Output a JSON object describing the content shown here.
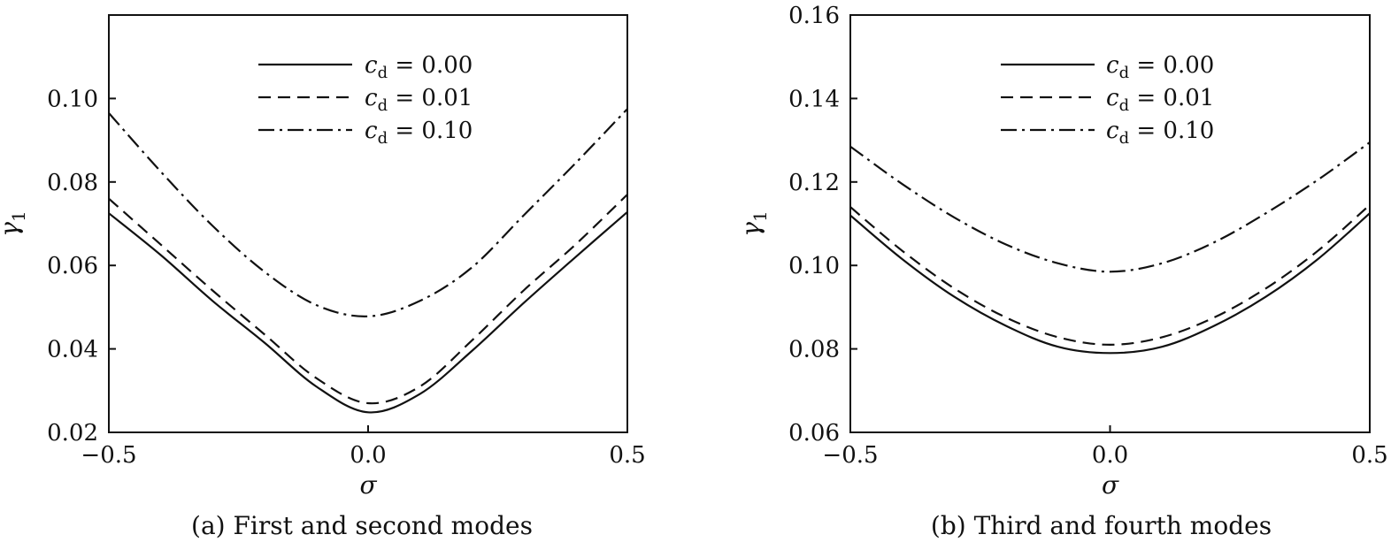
{
  "chart_data": [
    {
      "type": "line",
      "caption": "(a) First and second modes",
      "xlabel": "σ",
      "ylabel": "γ",
      "ylabel_sub": "1",
      "xlim": [
        -0.5,
        0.5
      ],
      "ylim": [
        0.02,
        0.12
      ],
      "xticks": [
        -0.5,
        0.0,
        0.5
      ],
      "xtick_labels": [
        "−0.5",
        "0.0",
        "0.5"
      ],
      "yticks": [
        0.02,
        0.04,
        0.06,
        0.08,
        0.1
      ],
      "ytick_labels": [
        "0.02",
        "0.04",
        "0.06",
        "0.08",
        "0.10"
      ],
      "legend_position": "top-center",
      "x": [
        -0.5,
        -0.4,
        -0.3,
        -0.2,
        -0.1,
        0.0,
        0.1,
        0.2,
        0.3,
        0.4,
        0.5
      ],
      "series": [
        {
          "name": "c_d = 0.00",
          "label": {
            "var": "c",
            "sub": "d",
            "value": " = 0.00"
          },
          "dash": "solid",
          "values": [
            0.0725,
            0.0625,
            0.0515,
            0.0415,
            0.031,
            0.0248,
            0.0292,
            0.0395,
            0.051,
            0.062,
            0.0728
          ]
        },
        {
          "name": "c_d = 0.01",
          "label": {
            "var": "c",
            "sub": "d",
            "value": " = 0.01"
          },
          "dash": "dashed",
          "values": [
            0.076,
            0.065,
            0.054,
            0.0435,
            0.033,
            0.027,
            0.031,
            0.042,
            0.054,
            0.065,
            0.077
          ]
        },
        {
          "name": "c_d = 0.10",
          "label": {
            "var": "c",
            "sub": "d",
            "value": " = 0.10"
          },
          "dash": "dashdot",
          "values": [
            0.0965,
            0.0825,
            0.0695,
            0.0585,
            0.0505,
            0.0478,
            0.0515,
            0.0595,
            0.072,
            0.0845,
            0.0975
          ]
        }
      ]
    },
    {
      "type": "line",
      "caption": "(b) Third and fourth modes",
      "xlabel": "σ",
      "ylabel": "γ",
      "ylabel_sub": "1",
      "xlim": [
        -0.5,
        0.5
      ],
      "ylim": [
        0.06,
        0.16
      ],
      "xticks": [
        -0.5,
        0.0,
        0.5
      ],
      "xtick_labels": [
        "−0.5",
        "0.0",
        "0.5"
      ],
      "yticks": [
        0.06,
        0.08,
        0.1,
        0.12,
        0.14,
        0.16
      ],
      "ytick_labels": [
        "0.06",
        "0.08",
        "0.10",
        "0.12",
        "0.14",
        "0.16"
      ],
      "legend_position": "top-center",
      "x": [
        -0.5,
        -0.4,
        -0.3,
        -0.2,
        -0.1,
        0.0,
        0.1,
        0.2,
        0.3,
        0.4,
        0.5
      ],
      "series": [
        {
          "name": "c_d = 0.00",
          "label": {
            "var": "c",
            "sub": "d",
            "value": " = 0.00"
          },
          "dash": "solid",
          "values": [
            0.112,
            0.1015,
            0.0925,
            0.0855,
            0.0805,
            0.079,
            0.0805,
            0.0855,
            0.0925,
            0.1015,
            0.1125
          ]
        },
        {
          "name": "c_d = 0.01",
          "label": {
            "var": "c",
            "sub": "d",
            "value": " = 0.01"
          },
          "dash": "dashed",
          "values": [
            0.114,
            0.1035,
            0.0945,
            0.0875,
            0.0828,
            0.081,
            0.0828,
            0.0875,
            0.0945,
            0.1035,
            0.1145
          ]
        },
        {
          "name": "c_d = 0.10",
          "label": {
            "var": "c",
            "sub": "d",
            "value": " = 0.10"
          },
          "dash": "dashdot",
          "values": [
            0.1285,
            0.1195,
            0.1115,
            0.105,
            0.1005,
            0.0985,
            0.1005,
            0.1055,
            0.1125,
            0.1205,
            0.1295
          ]
        }
      ]
    }
  ]
}
